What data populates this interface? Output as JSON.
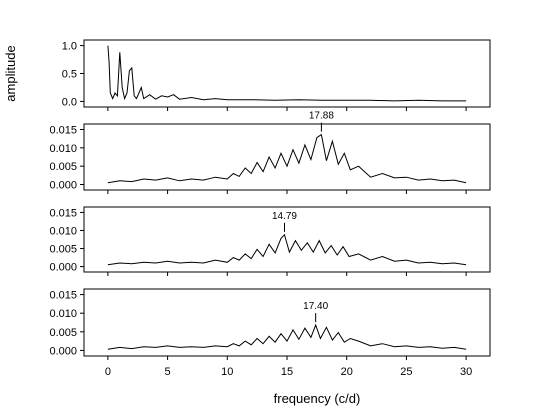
{
  "chart_data": {
    "type": "line",
    "xlabel": "frequency (c/d)",
    "xlim": [
      -2,
      32
    ],
    "xticks": [
      "0",
      "5",
      "10",
      "15",
      "20",
      "25",
      "30"
    ],
    "panels": [
      {
        "ylabel": "amplitude",
        "ylim": [
          -0.1,
          1.1
        ],
        "yticks": [
          "1.0",
          "0.5",
          "0.0"
        ],
        "peak_label": null,
        "series": {
          "x": [
            0.0,
            0.1,
            0.2,
            0.4,
            0.6,
            0.8,
            1.0,
            1.2,
            1.4,
            1.6,
            1.8,
            2.0,
            2.2,
            2.4,
            2.6,
            2.8,
            3.0,
            3.5,
            4.0,
            4.5,
            5.0,
            5.5,
            6.0,
            7.0,
            8.0,
            9.0,
            10.0,
            12.0,
            14.0,
            16.0,
            18.0,
            20.0,
            22.0,
            24.0,
            26.0,
            28.0,
            30.0
          ],
          "y": [
            1.0,
            0.7,
            0.15,
            0.05,
            0.15,
            0.1,
            0.88,
            0.25,
            0.05,
            0.15,
            0.55,
            0.6,
            0.1,
            0.05,
            0.15,
            0.25,
            0.05,
            0.12,
            0.04,
            0.1,
            0.08,
            0.12,
            0.04,
            0.07,
            0.03,
            0.05,
            0.03,
            0.03,
            0.02,
            0.03,
            0.02,
            0.02,
            0.02,
            0.01,
            0.02,
            0.01,
            0.01
          ]
        }
      },
      {
        "ylabel": "",
        "ylim": [
          -0.0015,
          0.0165
        ],
        "yticks": [
          "0.015",
          "0.010",
          "0.005",
          "0.000"
        ],
        "peak_label": {
          "text": "17.88",
          "x": 17.88,
          "y": 0.0136
        },
        "series": {
          "x": [
            0,
            1,
            2,
            3,
            4,
            5,
            6,
            7,
            8,
            9,
            10,
            10.5,
            11,
            11.5,
            12,
            12.5,
            13,
            13.5,
            14,
            14.5,
            15,
            15.5,
            16,
            16.5,
            17,
            17.5,
            17.88,
            18.3,
            18.8,
            19.3,
            19.8,
            20.3,
            21,
            22,
            23,
            24,
            25,
            26,
            27,
            28,
            29,
            30
          ],
          "y": [
            0.0005,
            0.001,
            0.0008,
            0.0015,
            0.0012,
            0.0018,
            0.001,
            0.0015,
            0.0012,
            0.002,
            0.0015,
            0.003,
            0.0022,
            0.0045,
            0.003,
            0.006,
            0.0035,
            0.0075,
            0.0045,
            0.0085,
            0.005,
            0.0095,
            0.0058,
            0.0108,
            0.0068,
            0.0128,
            0.0136,
            0.0065,
            0.0118,
            0.0055,
            0.0085,
            0.004,
            0.005,
            0.002,
            0.003,
            0.0018,
            0.002,
            0.0012,
            0.0015,
            0.001,
            0.0012,
            0.0005
          ]
        }
      },
      {
        "ylabel": "",
        "ylim": [
          -0.0015,
          0.0165
        ],
        "yticks": [
          "0.015",
          "0.010",
          "0.005",
          "0.000"
        ],
        "peak_label": {
          "text": "14.79",
          "x": 14.79,
          "y": 0.0088
        },
        "series": {
          "x": [
            0,
            1,
            2,
            3,
            4,
            5,
            6,
            7,
            8,
            9,
            10,
            10.5,
            11,
            11.5,
            12,
            12.5,
            13,
            13.5,
            14,
            14.5,
            14.79,
            15.2,
            15.7,
            16.2,
            16.7,
            17.2,
            17.7,
            18.2,
            18.7,
            19.2,
            19.7,
            20.2,
            21,
            22,
            23,
            24,
            25,
            26,
            27,
            28,
            29,
            30
          ],
          "y": [
            0.0005,
            0.001,
            0.0008,
            0.0012,
            0.001,
            0.0015,
            0.001,
            0.0012,
            0.001,
            0.0018,
            0.0012,
            0.0025,
            0.0018,
            0.0035,
            0.0022,
            0.0048,
            0.0028,
            0.0062,
            0.0038,
            0.0078,
            0.0088,
            0.004,
            0.0072,
            0.0045,
            0.0066,
            0.004,
            0.0072,
            0.0038,
            0.0058,
            0.0032,
            0.0055,
            0.0028,
            0.0035,
            0.0018,
            0.0028,
            0.0015,
            0.0018,
            0.001,
            0.0012,
            0.0008,
            0.001,
            0.0005
          ]
        }
      },
      {
        "ylabel": "",
        "ylim": [
          -0.0015,
          0.0165
        ],
        "yticks": [
          "0.015",
          "0.010",
          "0.005",
          "0.000"
        ],
        "peak_label": {
          "text": "17.40",
          "x": 17.4,
          "y": 0.0068
        },
        "series": {
          "x": [
            0,
            1,
            2,
            3,
            4,
            5,
            6,
            7,
            8,
            9,
            10,
            10.5,
            11,
            11.5,
            12,
            12.5,
            13,
            13.5,
            14,
            14.5,
            15,
            15.5,
            16,
            16.5,
            17,
            17.4,
            17.8,
            18.3,
            18.8,
            19.3,
            19.8,
            20.3,
            21,
            22,
            23,
            24,
            25,
            26,
            27,
            28,
            29,
            30
          ],
          "y": [
            0.0003,
            0.0008,
            0.0005,
            0.001,
            0.0008,
            0.0012,
            0.0008,
            0.001,
            0.0008,
            0.0012,
            0.001,
            0.0018,
            0.0012,
            0.0025,
            0.0015,
            0.0032,
            0.0018,
            0.0038,
            0.0022,
            0.0045,
            0.0025,
            0.0055,
            0.003,
            0.006,
            0.0035,
            0.0068,
            0.0032,
            0.0062,
            0.0028,
            0.0048,
            0.0022,
            0.0032,
            0.0025,
            0.0012,
            0.0018,
            0.001,
            0.0012,
            0.0008,
            0.001,
            0.0006,
            0.0008,
            0.0003
          ]
        }
      }
    ]
  }
}
